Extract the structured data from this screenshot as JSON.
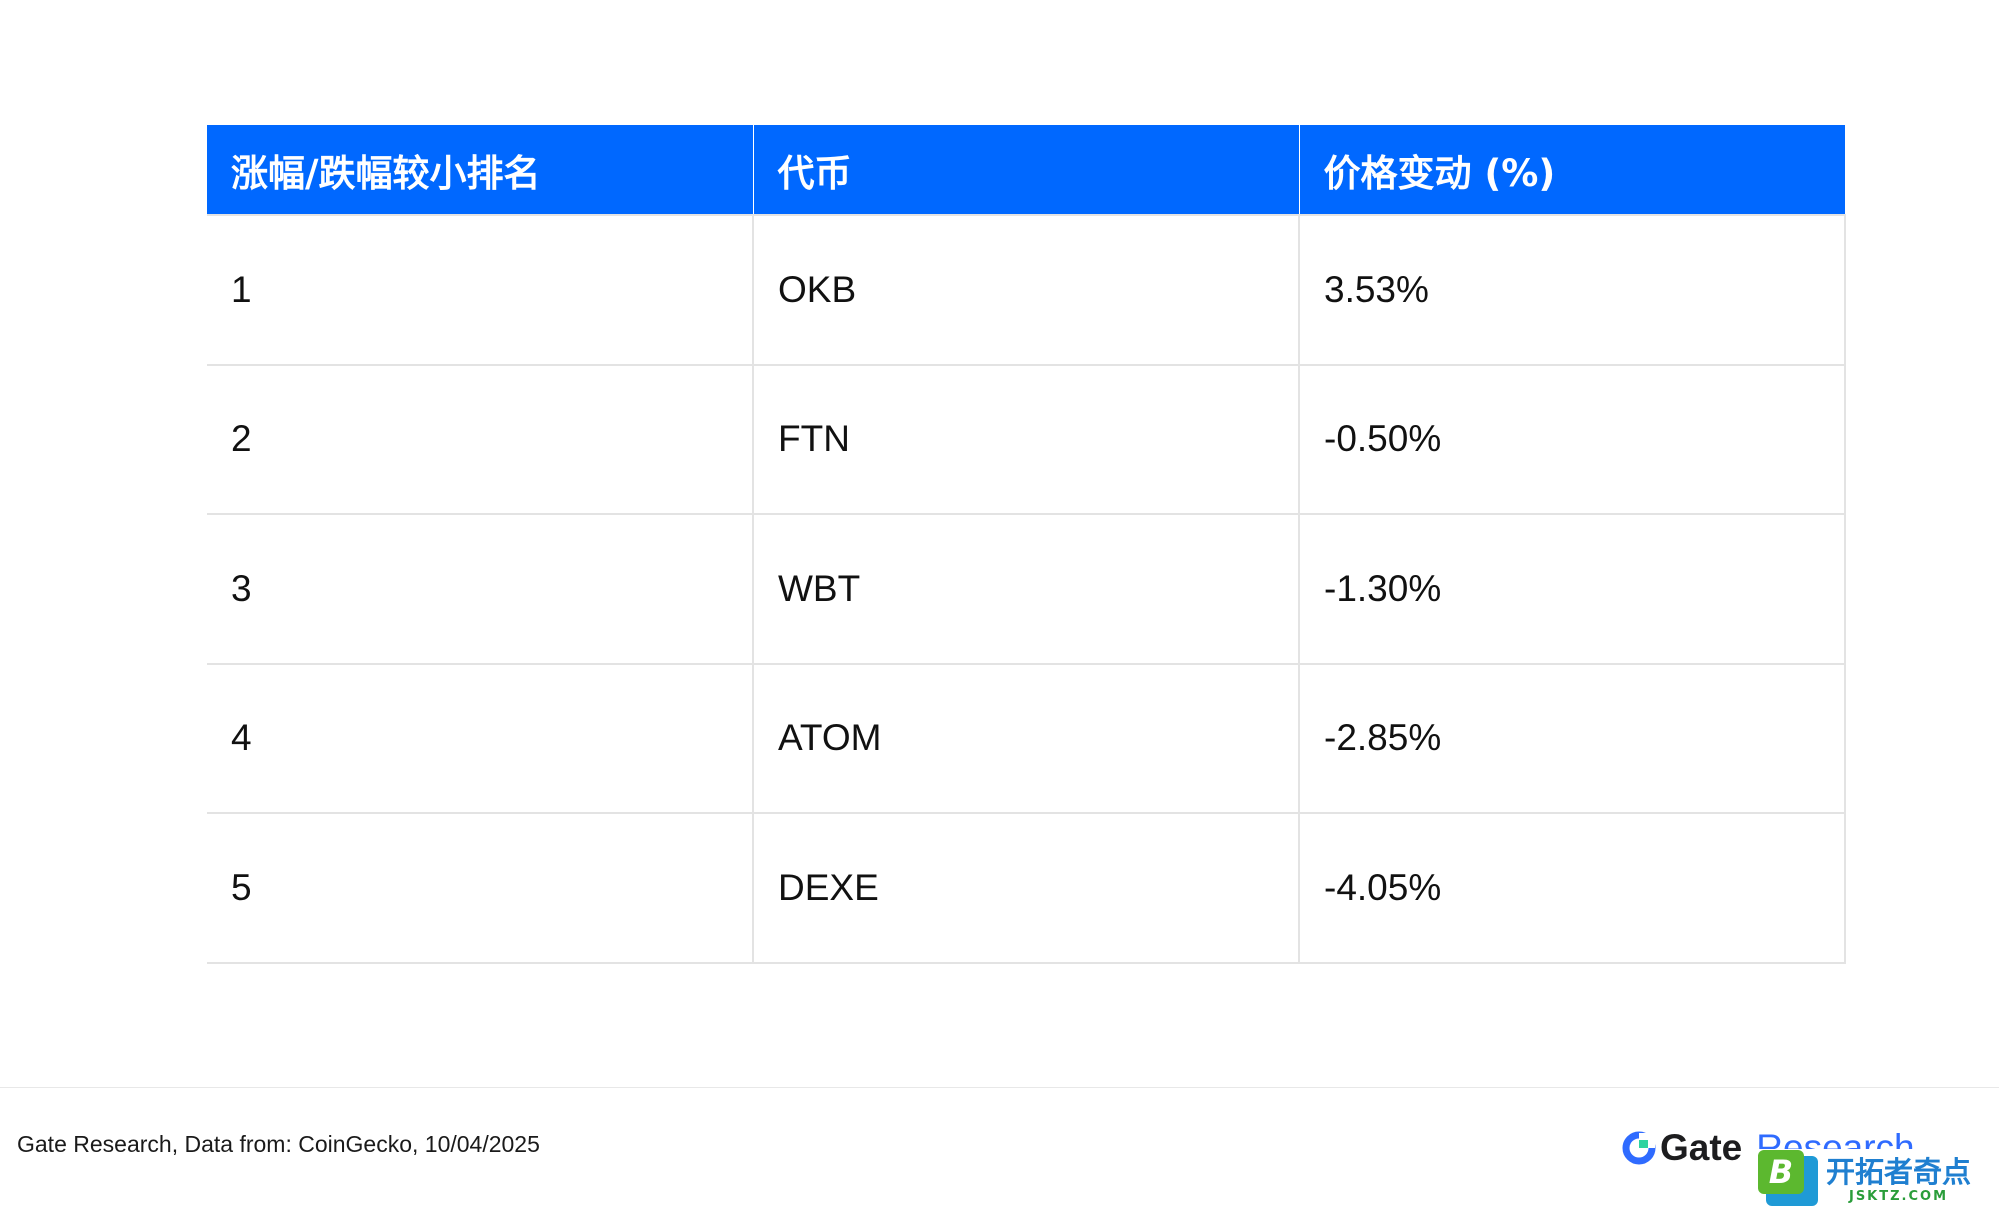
{
  "table": {
    "headers": [
      "涨幅/跌幅较小排名",
      "代币",
      "价格变动 (%)"
    ],
    "rows": [
      [
        "1",
        "OKB",
        "3.53%"
      ],
      [
        "2",
        "FTN",
        "-0.50%"
      ],
      [
        "3",
        "WBT",
        "-1.30%"
      ],
      [
        "4",
        "ATOM",
        "-2.85%"
      ],
      [
        "5",
        "DEXE",
        "-4.05%"
      ]
    ]
  },
  "footer": {
    "source": "Gate Research, Data from: CoinGecko, 10/04/2025",
    "brand_gate": "Gate",
    "brand_research": "Research"
  },
  "watermark": {
    "logo_letter": "B",
    "cn": "开拓者奇点",
    "url": "JSKTZ.COM"
  },
  "colors": {
    "header_bg": "#0068ff",
    "brand_blue": "#2f6bff"
  }
}
